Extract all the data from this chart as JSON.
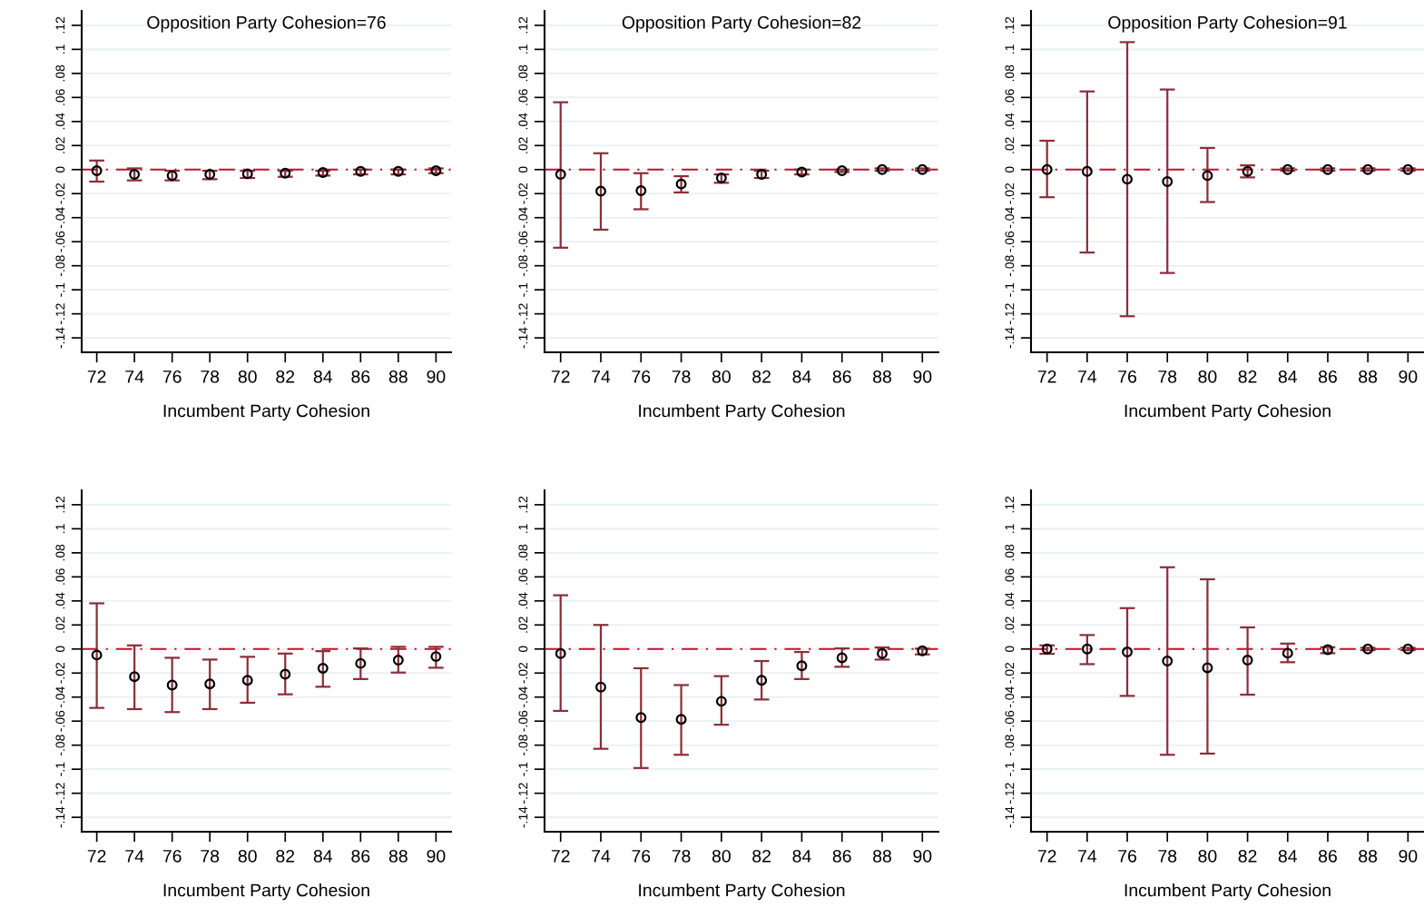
{
  "chart_data": [
    {
      "type": "scatter",
      "title": "Opposition Party Cohesion=76",
      "xlabel": "Incumbent Party Cohesion",
      "x": [
        72,
        74,
        76,
        78,
        80,
        82,
        84,
        86,
        88,
        90
      ],
      "marker": "circle",
      "grid": "y",
      "series": [
        {
          "color": "#000000",
          "values": [
            -0.001,
            -0.004,
            -0.005,
            -0.004,
            -0.0035,
            -0.003,
            -0.0025,
            -0.0015,
            -0.0015,
            -0.001
          ],
          "errors": [
            [
              -0.01,
              0.0075
            ],
            [
              -0.009,
              0.001
            ],
            [
              -0.009,
              -0.001
            ],
            [
              -0.008,
              -0.001
            ],
            [
              -0.007,
              -0.001
            ],
            [
              -0.006,
              -0.001
            ],
            [
              -0.005,
              -0.001
            ],
            [
              -0.004,
              0
            ],
            [
              -0.004,
              0
            ],
            [
              -0.003,
              0.001
            ]
          ]
        }
      ],
      "ref_lines": [
        {
          "axis": "y",
          "value": 0,
          "color": "#c8102e",
          "line_style": "dashdot"
        }
      ],
      "xlim": [
        71.2,
        90.8
      ],
      "xticks": [
        72,
        74,
        76,
        78,
        80,
        82,
        84,
        86,
        88,
        90
      ],
      "ylim": [
        -0.152,
        0.132
      ],
      "yticks": [
        {
          "value": -0.14,
          "label": "-.14"
        },
        {
          "value": -0.12,
          "label": "-.12"
        },
        {
          "value": -0.1,
          "label": "-.1"
        },
        {
          "value": -0.08,
          "label": "-.08"
        },
        {
          "value": -0.06,
          "label": "-.06"
        },
        {
          "value": -0.04,
          "label": "-.04"
        },
        {
          "value": -0.02,
          "label": "-.02"
        },
        0,
        {
          "value": 0.02,
          "label": ".02"
        },
        {
          "value": 0.04,
          "label": ".04"
        },
        {
          "value": 0.06,
          "label": ".06"
        },
        {
          "value": 0.08,
          "label": ".08"
        },
        {
          "value": 0.1,
          "label": ".1"
        },
        {
          "value": 0.12,
          "label": ".12"
        }
      ]
    },
    {
      "type": "scatter",
      "title": "Opposition Party Cohesion=82",
      "xlabel": "Incumbent Party Cohesion",
      "x": [
        72,
        74,
        76,
        78,
        80,
        82,
        84,
        86,
        88,
        90
      ],
      "marker": "circle",
      "grid": "y",
      "series": [
        {
          "color": "#000000",
          "values": [
            -0.004,
            -0.018,
            -0.0176,
            -0.012,
            -0.007,
            -0.004,
            -0.002,
            -0.001,
            0,
            0
          ],
          "errors": [
            [
              -0.065,
              0.056
            ],
            [
              -0.05,
              0.0136
            ],
            [
              -0.033,
              -0.003
            ],
            [
              -0.019,
              -0.0055
            ],
            [
              -0.011,
              -0.004
            ],
            [
              -0.007,
              -0.001
            ],
            [
              -0.004,
              0
            ],
            [
              -0.002,
              0
            ],
            [
              -0.001,
              0.001
            ],
            [
              -0.001,
              0.001
            ]
          ]
        }
      ],
      "ref_lines": [
        {
          "axis": "y",
          "value": 0,
          "color": "#c8102e",
          "line_style": "dashdot"
        }
      ],
      "xlim": [
        71.2,
        90.8
      ],
      "xticks": [
        72,
        74,
        76,
        78,
        80,
        82,
        84,
        86,
        88,
        90
      ],
      "ylim": [
        -0.152,
        0.132
      ],
      "yticks": [
        {
          "value": -0.14,
          "label": "-.14"
        },
        {
          "value": -0.12,
          "label": "-.12"
        },
        {
          "value": -0.1,
          "label": "-.1"
        },
        {
          "value": -0.08,
          "label": "-.08"
        },
        {
          "value": -0.06,
          "label": "-.06"
        },
        {
          "value": -0.04,
          "label": "-.04"
        },
        {
          "value": -0.02,
          "label": "-.02"
        },
        0,
        {
          "value": 0.02,
          "label": ".02"
        },
        {
          "value": 0.04,
          "label": ".04"
        },
        {
          "value": 0.06,
          "label": ".06"
        },
        {
          "value": 0.08,
          "label": ".08"
        },
        {
          "value": 0.1,
          "label": ".1"
        },
        {
          "value": 0.12,
          "label": ".12"
        }
      ]
    },
    {
      "type": "scatter",
      "title": "Opposition Party Cohesion=91",
      "xlabel": "Incumbent Party Cohesion",
      "x": [
        72,
        74,
        76,
        78,
        80,
        82,
        84,
        86,
        88,
        90
      ],
      "marker": "circle",
      "grid": "y",
      "series": [
        {
          "color": "#000000",
          "values": [
            0,
            -0.0015,
            -0.008,
            -0.01,
            -0.005,
            -0.0015,
            0,
            0,
            0,
            0
          ],
          "errors": [
            [
              -0.023,
              0.024
            ],
            [
              -0.069,
              0.065
            ],
            [
              -0.122,
              0.106
            ],
            [
              -0.086,
              0.0666
            ],
            [
              -0.027,
              0.018
            ],
            [
              -0.0065,
              0.0035
            ],
            [
              -0.001,
              0.001
            ],
            [
              -0.001,
              0.001
            ],
            [
              -0.001,
              0.001
            ],
            [
              -0.001,
              0.001
            ]
          ]
        }
      ],
      "ref_lines": [
        {
          "axis": "y",
          "value": 0,
          "color": "#c8102e",
          "line_style": "dashdot"
        }
      ],
      "xlim": [
        71.2,
        90.8
      ],
      "xticks": [
        72,
        74,
        76,
        78,
        80,
        82,
        84,
        86,
        88,
        90
      ],
      "ylim": [
        -0.152,
        0.132
      ],
      "yticks": [
        {
          "value": -0.14,
          "label": "-.14"
        },
        {
          "value": -0.12,
          "label": "-.12"
        },
        {
          "value": -0.1,
          "label": "-.1"
        },
        {
          "value": -0.08,
          "label": "-.08"
        },
        {
          "value": -0.06,
          "label": "-.06"
        },
        {
          "value": -0.04,
          "label": "-.04"
        },
        {
          "value": -0.02,
          "label": "-.02"
        },
        0,
        {
          "value": 0.02,
          "label": ".02"
        },
        {
          "value": 0.04,
          "label": ".04"
        },
        {
          "value": 0.06,
          "label": ".06"
        },
        {
          "value": 0.08,
          "label": ".08"
        },
        {
          "value": 0.1,
          "label": ".1"
        },
        {
          "value": 0.12,
          "label": ".12"
        }
      ]
    },
    {
      "type": "scatter",
      "xlabel": "Incumbent Party Cohesion",
      "x": [
        72,
        74,
        76,
        78,
        80,
        82,
        84,
        86,
        88,
        90
      ],
      "marker": "circle",
      "grid": "y",
      "series": [
        {
          "color": "#000000",
          "values": [
            -0.005,
            -0.023,
            -0.03,
            -0.029,
            -0.026,
            -0.021,
            -0.016,
            -0.012,
            -0.0093,
            -0.0063
          ],
          "errors": [
            [
              -0.049,
              0.038
            ],
            [
              -0.05,
              0.003
            ],
            [
              -0.0525,
              -0.0073
            ],
            [
              -0.05,
              -0.0088
            ],
            [
              -0.0447,
              -0.0065
            ],
            [
              -0.0377,
              -0.0038
            ],
            [
              -0.0314,
              -0.0018
            ],
            [
              -0.025,
              0.0005
            ],
            [
              -0.0196,
              0.0018
            ],
            [
              -0.0156,
              0.0018
            ]
          ]
        }
      ],
      "ref_lines": [
        {
          "axis": "y",
          "value": 0,
          "color": "#c8102e",
          "line_style": "dashdot"
        }
      ],
      "xlim": [
        71.2,
        90.8
      ],
      "xticks": [
        72,
        74,
        76,
        78,
        80,
        82,
        84,
        86,
        88,
        90
      ],
      "ylim": [
        -0.152,
        0.132
      ],
      "yticks": [
        {
          "value": -0.14,
          "label": "-.14"
        },
        {
          "value": -0.12,
          "label": "-.12"
        },
        {
          "value": -0.1,
          "label": "-.1"
        },
        {
          "value": -0.08,
          "label": "-.08"
        },
        {
          "value": -0.06,
          "label": "-.06"
        },
        {
          "value": -0.04,
          "label": "-.04"
        },
        {
          "value": -0.02,
          "label": "-.02"
        },
        0,
        {
          "value": 0.02,
          "label": ".02"
        },
        {
          "value": 0.04,
          "label": ".04"
        },
        {
          "value": 0.06,
          "label": ".06"
        },
        {
          "value": 0.08,
          "label": ".08"
        },
        {
          "value": 0.1,
          "label": ".1"
        },
        {
          "value": 0.12,
          "label": ".12"
        }
      ]
    },
    {
      "type": "scatter",
      "xlabel": "Incumbent Party Cohesion",
      "x": [
        72,
        74,
        76,
        78,
        80,
        82,
        84,
        86,
        88,
        90
      ],
      "marker": "circle",
      "grid": "y",
      "series": [
        {
          "color": "#000000",
          "values": [
            -0.0038,
            -0.0317,
            -0.057,
            -0.0585,
            -0.0435,
            -0.026,
            -0.014,
            -0.0073,
            -0.0038,
            -0.0015
          ],
          "errors": [
            [
              -0.0515,
              0.0447
            ],
            [
              -0.083,
              0.02
            ],
            [
              -0.099,
              -0.016
            ],
            [
              -0.088,
              -0.03
            ],
            [
              -0.063,
              -0.0226
            ],
            [
              -0.042,
              -0.01
            ],
            [
              -0.025,
              -0.0025
            ],
            [
              -0.0148,
              0.0005
            ],
            [
              -0.0088,
              0.0013
            ],
            [
              -0.0045,
              0.0003
            ]
          ]
        }
      ],
      "ref_lines": [
        {
          "axis": "y",
          "value": 0,
          "color": "#c8102e",
          "line_style": "dashdot"
        }
      ],
      "xlim": [
        71.2,
        90.8
      ],
      "xticks": [
        72,
        74,
        76,
        78,
        80,
        82,
        84,
        86,
        88,
        90
      ],
      "ylim": [
        -0.152,
        0.132
      ],
      "yticks": [
        {
          "value": -0.14,
          "label": "-.14"
        },
        {
          "value": -0.12,
          "label": "-.12"
        },
        {
          "value": -0.1,
          "label": "-.1"
        },
        {
          "value": -0.08,
          "label": "-.08"
        },
        {
          "value": -0.06,
          "label": "-.06"
        },
        {
          "value": -0.04,
          "label": "-.04"
        },
        {
          "value": -0.02,
          "label": "-.02"
        },
        0,
        {
          "value": 0.02,
          "label": ".02"
        },
        {
          "value": 0.04,
          "label": ".04"
        },
        {
          "value": 0.06,
          "label": ".06"
        },
        {
          "value": 0.08,
          "label": ".08"
        },
        {
          "value": 0.1,
          "label": ".1"
        },
        {
          "value": 0.12,
          "label": ".12"
        }
      ]
    },
    {
      "type": "scatter",
      "xlabel": "Incumbent Party Cohesion",
      "x": [
        72,
        74,
        76,
        78,
        80,
        82,
        84,
        86,
        88,
        90
      ],
      "marker": "circle",
      "grid": "y",
      "series": [
        {
          "color": "#000000",
          "values": [
            0,
            0,
            -0.0025,
            -0.01,
            -0.0156,
            -0.0093,
            -0.0035,
            -0.0005,
            0,
            0
          ],
          "errors": [
            [
              -0.004,
              0.003
            ],
            [
              -0.0126,
              0.0116
            ],
            [
              -0.039,
              0.034
            ],
            [
              -0.088,
              0.068
            ],
            [
              -0.087,
              0.058
            ],
            [
              -0.038,
              0.018
            ],
            [
              -0.011,
              0.0045
            ],
            [
              -0.0035,
              0.0015
            ],
            [
              -0.001,
              0.001
            ],
            [
              -0.001,
              0.001
            ]
          ]
        }
      ],
      "ref_lines": [
        {
          "axis": "y",
          "value": 0,
          "color": "#c8102e",
          "line_style": "dashdot"
        }
      ],
      "xlim": [
        71.2,
        90.8
      ],
      "xticks": [
        72,
        74,
        76,
        78,
        80,
        82,
        84,
        86,
        88,
        90
      ],
      "ylim": [
        -0.152,
        0.132
      ],
      "yticks": [
        {
          "value": -0.14,
          "label": "-.14"
        },
        {
          "value": -0.12,
          "label": "-.12"
        },
        {
          "value": -0.1,
          "label": "-.1"
        },
        {
          "value": -0.08,
          "label": "-.08"
        },
        {
          "value": -0.06,
          "label": "-.06"
        },
        {
          "value": -0.04,
          "label": "-.04"
        },
        {
          "value": -0.02,
          "label": "-.02"
        },
        0,
        {
          "value": 0.02,
          "label": ".02"
        },
        {
          "value": 0.04,
          "label": ".04"
        },
        {
          "value": 0.06,
          "label": ".06"
        },
        {
          "value": 0.08,
          "label": ".08"
        },
        {
          "value": 0.1,
          "label": ".1"
        },
        {
          "value": 0.12,
          "label": ".12"
        }
      ]
    }
  ]
}
